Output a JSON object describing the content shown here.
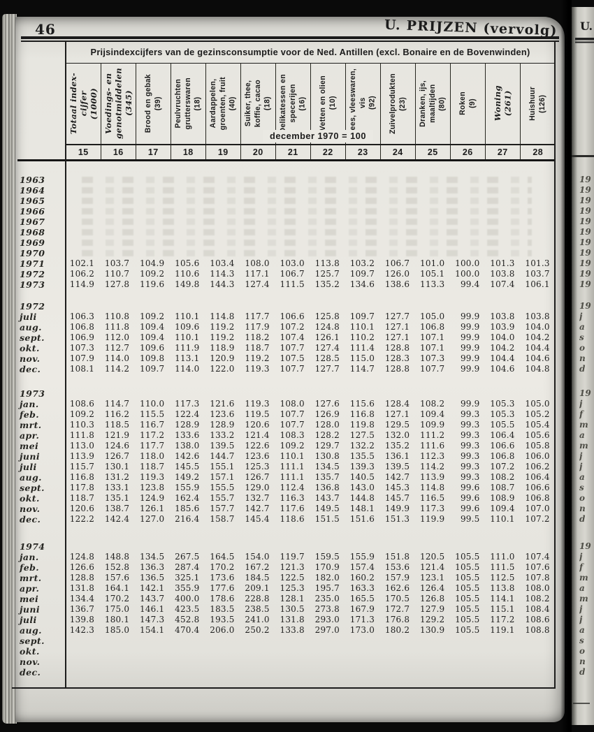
{
  "page": {
    "number": "46",
    "header": "U. PRIJZEN (vervolg)"
  },
  "adjacent_page": {
    "header": "U."
  },
  "table": {
    "title": "Prijsindexcijfers van de gezinsconsumptie voor de Ned. Antillen (excl. Bonaire en de Bovenwinden)",
    "base_note": "december 1970 = 100",
    "columns": [
      {
        "num": "15",
        "italic": true,
        "lines": [
          "Totaal index-",
          "cijfer",
          "(1000)"
        ]
      },
      {
        "num": "16",
        "italic": true,
        "lines": [
          "Voedings- en",
          "genotmiddelen",
          "(345)"
        ]
      },
      {
        "num": "17",
        "italic": false,
        "lines": [
          "Brood en gebak",
          "(39)"
        ]
      },
      {
        "num": "18",
        "italic": false,
        "lines": [
          "Peulvruchten",
          "grutterswaren",
          "(18)"
        ]
      },
      {
        "num": "19",
        "italic": false,
        "lines": [
          "Aardappelen,",
          "groenten, fruit",
          "(40)"
        ]
      },
      {
        "num": "20",
        "italic": false,
        "lines": [
          "Suiker, thee,",
          "koffie, cacao",
          "(18)"
        ]
      },
      {
        "num": "21",
        "italic": false,
        "lines": [
          "Delikatessen en",
          "specerijen",
          "(16)"
        ]
      },
      {
        "num": "22",
        "italic": false,
        "lines": [
          "Vetten en olien",
          "(10)"
        ]
      },
      {
        "num": "23",
        "italic": false,
        "lines": [
          "Vlees, vleeswaren,",
          "vis",
          "(92)"
        ]
      },
      {
        "num": "24",
        "italic": false,
        "lines": [
          "Zuivelprodukten",
          "(23)"
        ]
      },
      {
        "num": "25",
        "italic": false,
        "lines": [
          "Dranken, ijs,",
          "maaltijden",
          "(80)"
        ]
      },
      {
        "num": "26",
        "italic": false,
        "lines": [
          "Roken",
          "(9)"
        ]
      },
      {
        "num": "27",
        "italic": true,
        "lines": [
          "Woning",
          "(261)"
        ]
      },
      {
        "num": "28",
        "italic": false,
        "lines": [
          "Huishuur",
          "(126)"
        ]
      }
    ],
    "sections": [
      {
        "gap": 19,
        "rows": [
          {
            "p": "1963",
            "v": []
          },
          {
            "p": "1964",
            "v": []
          },
          {
            "p": "1965",
            "v": []
          },
          {
            "p": "1966",
            "v": []
          },
          {
            "p": "1967",
            "v": []
          },
          {
            "p": "1968",
            "v": []
          },
          {
            "p": "1969",
            "v": []
          },
          {
            "p": "1970",
            "v": []
          },
          {
            "p": "1971",
            "v": [
              "102.1",
              "103.7",
              "104.9",
              "105.6",
              "103.4",
              "108.0",
              "103.0",
              "113.8",
              "103.2",
              "106.7",
              "101.0",
              "100.0",
              "101.3",
              "101.3"
            ]
          },
          {
            "p": "1972",
            "v": [
              "106.2",
              "110.7",
              "109.2",
              "110.6",
              "114.3",
              "117.1",
              "106.7",
              "125.7",
              "109.7",
              "126.0",
              "105.1",
              "100.0",
              "103.8",
              "103.7"
            ]
          },
          {
            "p": "1973",
            "v": [
              "114.9",
              "127.8",
              "119.6",
              "149.8",
              "144.3",
              "127.4",
              "111.5",
              "135.2",
              "134.6",
              "138.6",
              "113.3",
              "99.4",
              "107.4",
              "106.1"
            ]
          }
        ]
      },
      {
        "gap": 16,
        "rows": [
          {
            "p": "1972",
            "v": []
          },
          {
            "p": "juli",
            "v": [
              "106.3",
              "110.8",
              "109.2",
              "110.1",
              "114.8",
              "117.7",
              "106.6",
              "125.8",
              "109.7",
              "127.7",
              "105.0",
              "99.9",
              "103.8",
              "103.8"
            ]
          },
          {
            "p": "aug.",
            "v": [
              "106.8",
              "111.8",
              "109.4",
              "109.6",
              "119.2",
              "117.9",
              "107.2",
              "124.8",
              "110.1",
              "127.1",
              "106.8",
              "99.9",
              "103.9",
              "104.0"
            ]
          },
          {
            "p": "sept.",
            "v": [
              "106.9",
              "112.0",
              "109.4",
              "110.1",
              "119.2",
              "118.2",
              "107.4",
              "126.1",
              "110.2",
              "127.1",
              "107.1",
              "99.9",
              "104.0",
              "104.2"
            ]
          },
          {
            "p": "okt.",
            "v": [
              "107.3",
              "112.7",
              "109.6",
              "111.9",
              "118.9",
              "118.7",
              "107.7",
              "127.4",
              "111.4",
              "128.8",
              "107.1",
              "99.9",
              "104.2",
              "104.4"
            ]
          },
          {
            "p": "nov.",
            "v": [
              "107.9",
              "114.0",
              "109.8",
              "113.1",
              "120.9",
              "119.2",
              "107.5",
              "128.5",
              "115.0",
              "128.3",
              "107.3",
              "99.9",
              "104.4",
              "104.6"
            ]
          },
          {
            "p": "dec.",
            "v": [
              "108.1",
              "114.2",
              "109.7",
              "114.0",
              "122.0",
              "119.3",
              "107.7",
              "127.7",
              "114.7",
              "128.8",
              "107.7",
              "99.9",
              "104.6",
              "104.8"
            ]
          }
        ]
      },
      {
        "gap": 20,
        "rows": [
          {
            "p": "1973",
            "v": []
          },
          {
            "p": "jan.",
            "v": [
              "108.6",
              "114.7",
              "110.0",
              "117.3",
              "121.6",
              "119.3",
              "108.0",
              "127.6",
              "115.6",
              "128.4",
              "108.2",
              "99.9",
              "105.3",
              "105.0"
            ]
          },
          {
            "p": "feb.",
            "v": [
              "109.2",
              "116.2",
              "115.5",
              "122.4",
              "123.6",
              "119.5",
              "107.7",
              "126.9",
              "116.8",
              "127.1",
              "109.4",
              "99.3",
              "105.3",
              "105.2"
            ]
          },
          {
            "p": "mrt.",
            "v": [
              "110.3",
              "118.5",
              "116.7",
              "128.9",
              "128.9",
              "120.6",
              "107.7",
              "128.0",
              "119.8",
              "129.5",
              "109.9",
              "99.3",
              "105.5",
              "105.4"
            ]
          },
          {
            "p": "apr.",
            "v": [
              "111.8",
              "121.9",
              "117.2",
              "133.6",
              "133.2",
              "121.4",
              "108.3",
              "128.2",
              "127.5",
              "132.0",
              "111.2",
              "99.3",
              "106.4",
              "105.6"
            ]
          },
          {
            "p": "mei",
            "v": [
              "113.0",
              "124.6",
              "117.7",
              "138.0",
              "139.5",
              "122.6",
              "109.2",
              "129.7",
              "132.2",
              "135.2",
              "111.6",
              "99.3",
              "106.6",
              "105.8"
            ]
          },
          {
            "p": "juni",
            "v": [
              "113.9",
              "126.7",
              "118.0",
              "142.6",
              "144.7",
              "123.6",
              "110.1",
              "130.8",
              "135.5",
              "136.1",
              "112.3",
              "99.3",
              "106.8",
              "106.0"
            ]
          },
          {
            "p": "juli",
            "v": [
              "115.7",
              "130.1",
              "118.7",
              "145.5",
              "155.1",
              "125.3",
              "111.1",
              "134.5",
              "139.3",
              "139.5",
              "114.2",
              "99.3",
              "107.2",
              "106.2"
            ]
          },
          {
            "p": "aug.",
            "v": [
              "116.8",
              "131.2",
              "119.3",
              "149.2",
              "157.1",
              "126.7",
              "111.1",
              "135.7",
              "140.5",
              "142.7",
              "113.9",
              "99.3",
              "108.2",
              "106.4"
            ]
          },
          {
            "p": "sept.",
            "v": [
              "117.8",
              "133.1",
              "123.8",
              "155.9",
              "155.5",
              "129.0",
              "112.4",
              "136.8",
              "143.0",
              "145.3",
              "114.8",
              "99.6",
              "108.7",
              "106.6"
            ]
          },
          {
            "p": "okt.",
            "v": [
              "118.7",
              "135.1",
              "124.9",
              "162.4",
              "155.7",
              "132.7",
              "116.3",
              "143.7",
              "144.8",
              "145.7",
              "116.5",
              "99.6",
              "108.9",
              "106.8"
            ]
          },
          {
            "p": "nov.",
            "v": [
              "120.6",
              "138.7",
              "126.1",
              "185.6",
              "157.7",
              "142.7",
              "117.6",
              "149.5",
              "148.1",
              "149.9",
              "117.3",
              "99.6",
              "109.4",
              "107.0"
            ]
          },
          {
            "p": "dec.",
            "v": [
              "122.2",
              "142.4",
              "127.0",
              "216.4",
              "158.7",
              "145.4",
              "118.6",
              "151.5",
              "151.6",
              "151.3",
              "119.9",
              "99.5",
              "110.1",
              "107.2"
            ]
          }
        ]
      },
      {
        "gap": 24,
        "rows": [
          {
            "p": "1974",
            "v": []
          },
          {
            "p": "jan.",
            "v": [
              "124.8",
              "148.8",
              "134.5",
              "267.5",
              "164.5",
              "154.0",
              "119.7",
              "159.5",
              "155.9",
              "151.8",
              "120.5",
              "105.5",
              "111.0",
              "107.4"
            ]
          },
          {
            "p": "feb.",
            "v": [
              "126.6",
              "152.8",
              "136.3",
              "287.4",
              "170.2",
              "167.2",
              "121.3",
              "170.9",
              "157.4",
              "153.6",
              "121.4",
              "105.5",
              "111.5",
              "107.6"
            ]
          },
          {
            "p": "mrt.",
            "v": [
              "128.8",
              "157.6",
              "136.5",
              "325.1",
              "173.6",
              "184.5",
              "122.5",
              "182.0",
              "160.2",
              "157.9",
              "123.1",
              "105.5",
              "112.5",
              "107.8"
            ]
          },
          {
            "p": "apr.",
            "v": [
              "131.8",
              "164.1",
              "142.1",
              "355.9",
              "177.6",
              "209.1",
              "125.3",
              "195.7",
              "163.3",
              "162.6",
              "126.4",
              "105.5",
              "113.8",
              "108.0"
            ]
          },
          {
            "p": "mei",
            "v": [
              "134.4",
              "170.2",
              "143.7",
              "400.0",
              "178.6",
              "228.8",
              "128.1",
              "235.0",
              "165.5",
              "170.5",
              "126.8",
              "105.5",
              "114.1",
              "108.2"
            ]
          },
          {
            "p": "juni",
            "v": [
              "136.7",
              "175.0",
              "146.1",
              "423.5",
              "183.5",
              "238.5",
              "130.5",
              "273.8",
              "167.9",
              "172.7",
              "127.9",
              "105.5",
              "115.1",
              "108.4"
            ]
          },
          {
            "p": "juli",
            "v": [
              "139.8",
              "180.1",
              "147.3",
              "452.8",
              "193.5",
              "241.0",
              "131.8",
              "293.0",
              "171.3",
              "176.8",
              "129.2",
              "105.5",
              "117.2",
              "108.6"
            ]
          },
          {
            "p": "aug.",
            "v": [
              "142.3",
              "185.0",
              "154.1",
              "470.4",
              "206.0",
              "250.2",
              "133.8",
              "297.0",
              "173.0",
              "180.2",
              "130.9",
              "105.5",
              "119.1",
              "108.8"
            ]
          },
          {
            "p": "sept.",
            "v": []
          },
          {
            "p": "okt.",
            "v": []
          },
          {
            "p": "nov.",
            "v": []
          },
          {
            "p": "dec.",
            "v": []
          }
        ]
      }
    ]
  }
}
